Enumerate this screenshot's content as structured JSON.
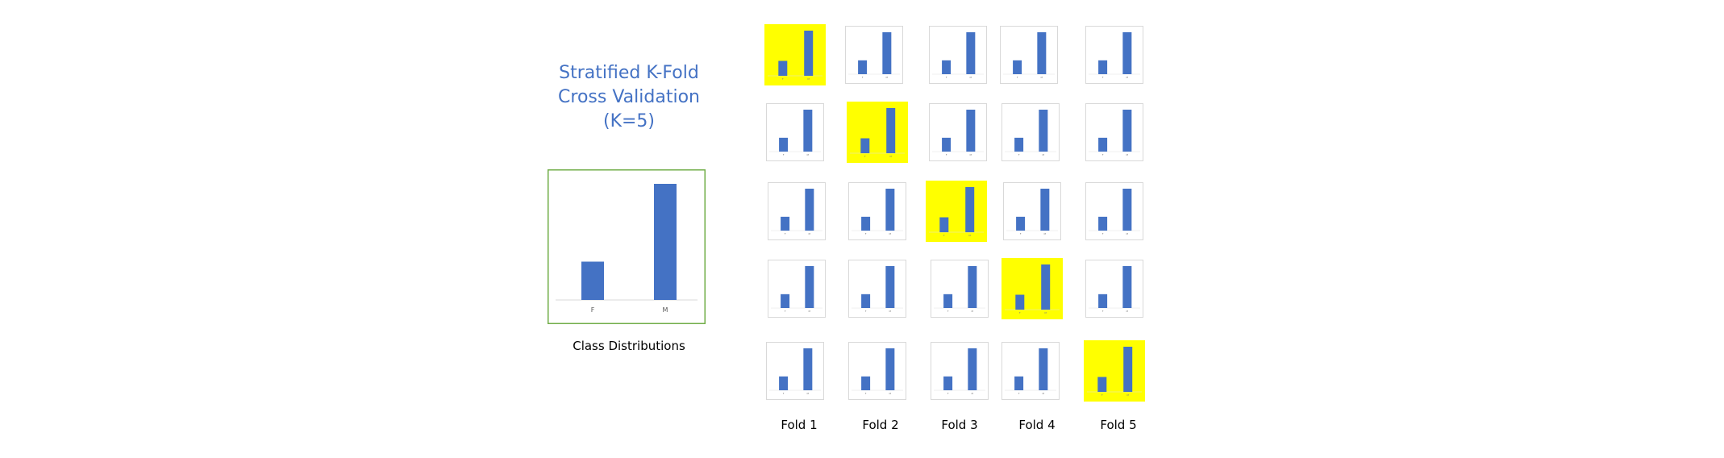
{
  "title": {
    "line1": "Stratified K-Fold",
    "line2": "Cross Validation",
    "line3": "(K=5)"
  },
  "colors": {
    "bar": "#4472C4",
    "highlight": "#FFFF00",
    "title": "#4472C4",
    "main_border": "#70AD47",
    "mini_border": "#D9D9D9"
  },
  "chart_data": {
    "type": "bar",
    "categories": [
      "F",
      "M"
    ],
    "values": [
      33,
      100
    ],
    "title": "",
    "xlabel": "",
    "ylabel": "",
    "ylim": [
      0,
      100
    ]
  },
  "caption": "Class Distributions",
  "folds": {
    "count": 5,
    "labels": [
      "Fold 1",
      "Fold 2",
      "Fold 3",
      "Fold 4",
      "Fold 5"
    ],
    "highlighted_per_row": [
      0,
      1,
      2,
      3,
      4
    ]
  }
}
